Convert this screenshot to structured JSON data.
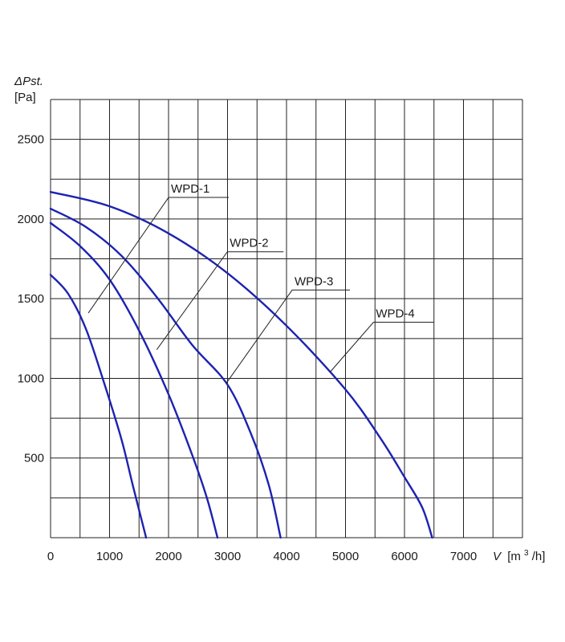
{
  "chart_data": {
    "type": "line",
    "ylabel_symbol": "ΔPst.",
    "ylabel_unit": "[Pa]",
    "xlabel_symbol": "V",
    "xlabel_unit_prefix": "[m",
    "xlabel_unit_sup": "3",
    "xlabel_unit_suffix": "/h]",
    "xlim": [
      0,
      8000
    ],
    "ylim": [
      0,
      2750
    ],
    "x_grid_step": 500,
    "y_grid_step": 250,
    "x_ticks": [
      0,
      1000,
      2000,
      3000,
      4000,
      5000,
      6000,
      7000
    ],
    "y_ticks": [
      500,
      1000,
      1500,
      2000,
      2500
    ],
    "grid": true,
    "curve_color": "#1c22b0",
    "series": [
      {
        "name": "WPD-1",
        "points": [
          [
            0,
            1650
          ],
          [
            300,
            1530
          ],
          [
            600,
            1310
          ],
          [
            900,
            980
          ],
          [
            1200,
            620
          ],
          [
            1400,
            320
          ],
          [
            1620,
            0
          ]
        ],
        "label_anchor": [
          640,
          1410
        ]
      },
      {
        "name": "WPD-2",
        "points": [
          [
            0,
            1975
          ],
          [
            500,
            1830
          ],
          [
            1000,
            1620
          ],
          [
            1500,
            1300
          ],
          [
            2000,
            900
          ],
          [
            2400,
            520
          ],
          [
            2650,
            250
          ],
          [
            2830,
            0
          ]
        ],
        "label_anchor": [
          1800,
          1180
        ]
      },
      {
        "name": "WPD-3",
        "points": [
          [
            0,
            2065
          ],
          [
            600,
            1950
          ],
          [
            1200,
            1770
          ],
          [
            1800,
            1510
          ],
          [
            2400,
            1210
          ],
          [
            3000,
            960
          ],
          [
            3400,
            650
          ],
          [
            3700,
            330
          ],
          [
            3900,
            0
          ]
        ],
        "label_anchor": [
          2980,
          970
        ]
      },
      {
        "name": "WPD-4",
        "points": [
          [
            0,
            2170
          ],
          [
            1000,
            2080
          ],
          [
            2000,
            1910
          ],
          [
            3000,
            1660
          ],
          [
            4000,
            1330
          ],
          [
            5000,
            930
          ],
          [
            5600,
            620
          ],
          [
            6000,
            380
          ],
          [
            6300,
            190
          ],
          [
            6470,
            0
          ]
        ],
        "label_anchor": [
          4740,
          1040
        ]
      }
    ]
  }
}
